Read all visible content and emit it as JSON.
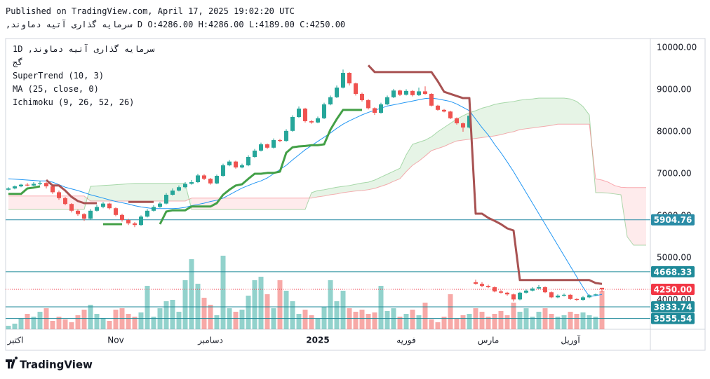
{
  "header": {
    "published": "Published on TradingView.com, April 17, 2025 19:02:20 UTC",
    "symbol": "سرمایه گذاری آتیه دماوند,",
    "interval": "D",
    "ohlc": [
      "O:4286.00",
      "H:4286.00",
      "L:4189.00",
      "C:4250.00"
    ]
  },
  "footer": {
    "brand": "TradingView"
  },
  "chart_data": {
    "type": "candlestick",
    "legend_interval": "1D",
    "legend_symbol": "سرمایه گذاری آتیه دماوند,",
    "legend_exchange": "گج",
    "up_color": "#26a69a",
    "down_color": "#ef5350",
    "grid": false,
    "ylim": [
      3300,
      10217
    ],
    "yticks": [
      {
        "value": 10000,
        "label": "10000.00"
      },
      {
        "value": 9000,
        "label": "9000.00"
      },
      {
        "value": 8000,
        "label": "8000.00"
      },
      {
        "value": 7000,
        "label": "7000.00"
      },
      {
        "value": 6000,
        "label": "6000.00"
      },
      {
        "value": 5000,
        "label": "5000.00"
      },
      {
        "value": 4000,
        "label": "4000.00"
      }
    ],
    "categories": [
      "اکتبر",
      null,
      null,
      null,
      null,
      null,
      null,
      null,
      null,
      null,
      null,
      null,
      null,
      null,
      null,
      null,
      null,
      "Nov",
      null,
      null,
      null,
      null,
      null,
      null,
      null,
      null,
      null,
      null,
      null,
      null,
      null,
      null,
      "دسامبر",
      null,
      null,
      null,
      null,
      null,
      null,
      null,
      null,
      null,
      null,
      null,
      null,
      null,
      null,
      null,
      null,
      "2025",
      null,
      null,
      null,
      null,
      null,
      null,
      null,
      null,
      null,
      null,
      null,
      null,
      null,
      "فوریه",
      null,
      null,
      null,
      null,
      null,
      null,
      null,
      null,
      null,
      null,
      null,
      null,
      "مارس",
      null,
      null,
      null,
      null,
      null,
      null,
      null,
      null,
      null,
      null,
      null,
      null,
      "آوریل",
      null,
      null,
      null,
      null,
      null,
      null,
      null,
      null,
      null,
      null,
      null,
      null
    ],
    "ohlc": [
      [
        6620,
        6680,
        6600,
        6650
      ],
      [
        6650,
        6720,
        6630,
        6700
      ],
      [
        6700,
        6760,
        6680,
        6740
      ],
      [
        6740,
        6780,
        6700,
        6720
      ],
      [
        6720,
        6800,
        6700,
        6760
      ],
      [
        6760,
        6830,
        6730,
        6780
      ],
      [
        6780,
        6800,
        6650,
        6700
      ],
      [
        6700,
        6720,
        6520,
        6560
      ],
      [
        6560,
        6600,
        6380,
        6420
      ],
      [
        6420,
        6450,
        6250,
        6280
      ],
      [
        6280,
        6300,
        6080,
        6120
      ],
      [
        6120,
        6150,
        6000,
        6040
      ],
      [
        6040,
        6060,
        5880,
        5930
      ],
      [
        5930,
        6160,
        5910,
        6120
      ],
      [
        6120,
        6260,
        6100,
        6210
      ],
      [
        6210,
        6330,
        6180,
        6290
      ],
      [
        6290,
        6310,
        6150,
        6180
      ],
      [
        6180,
        6200,
        5990,
        6020
      ],
      [
        6020,
        6050,
        5860,
        5900
      ],
      [
        5900,
        5930,
        5780,
        5820
      ],
      [
        5820,
        5850,
        5730,
        5780
      ],
      [
        5780,
        6010,
        5760,
        5980
      ],
      [
        5980,
        6160,
        5960,
        6120
      ],
      [
        6120,
        6250,
        6100,
        6210
      ],
      [
        6210,
        6330,
        6190,
        6290
      ],
      [
        6290,
        6540,
        6270,
        6500
      ],
      [
        6500,
        6650,
        6480,
        6600
      ],
      [
        6600,
        6720,
        6580,
        6680
      ],
      [
        6680,
        6800,
        6650,
        6760
      ],
      [
        6760,
        6850,
        6740,
        6800
      ],
      [
        6800,
        7000,
        6780,
        6960
      ],
      [
        6960,
        6990,
        6850,
        6880
      ],
      [
        6880,
        6900,
        6740,
        6770
      ],
      [
        6770,
        6980,
        6750,
        6950
      ],
      [
        6950,
        7240,
        6930,
        7200
      ],
      [
        7200,
        7330,
        7180,
        7290
      ],
      [
        7290,
        7310,
        7120,
        7150
      ],
      [
        7150,
        7240,
        7130,
        7200
      ],
      [
        7200,
        7440,
        7180,
        7400
      ],
      [
        7400,
        7590,
        7380,
        7550
      ],
      [
        7550,
        7740,
        7530,
        7700
      ],
      [
        7700,
        7720,
        7590,
        7620
      ],
      [
        7620,
        7840,
        7600,
        7800
      ],
      [
        7800,
        7830,
        7750,
        7780
      ],
      [
        7780,
        8060,
        7760,
        8020
      ],
      [
        8020,
        8390,
        8000,
        8350
      ],
      [
        8350,
        8600,
        8330,
        8550
      ],
      [
        8550,
        8570,
        8220,
        8250
      ],
      [
        8250,
        8280,
        8190,
        8220
      ],
      [
        8220,
        8360,
        8200,
        8320
      ],
      [
        8320,
        8690,
        8300,
        8650
      ],
      [
        8650,
        8860,
        8630,
        8820
      ],
      [
        8820,
        9100,
        8800,
        9050
      ],
      [
        9050,
        9480,
        9030,
        9400
      ],
      [
        9400,
        9420,
        9100,
        9150
      ],
      [
        9150,
        9170,
        8860,
        8900
      ],
      [
        8900,
        8930,
        8720,
        8750
      ],
      [
        8750,
        8780,
        8530,
        8560
      ],
      [
        8560,
        8580,
        8400,
        8450
      ],
      [
        8450,
        8690,
        8430,
        8650
      ],
      [
        8650,
        8860,
        8630,
        8820
      ],
      [
        8820,
        9020,
        8800,
        8980
      ],
      [
        8980,
        9000,
        8850,
        8880
      ],
      [
        8880,
        9010,
        8860,
        8970
      ],
      [
        8970,
        8990,
        8840,
        8870
      ],
      [
        8870,
        9050,
        8850,
        8960
      ],
      [
        8960,
        9080,
        8880,
        8900
      ],
      [
        8900,
        8920,
        8600,
        8620
      ],
      [
        8620,
        8640,
        8500,
        8520
      ],
      [
        8520,
        8540,
        8460,
        8480
      ],
      [
        8480,
        8500,
        8300,
        8320
      ],
      [
        8320,
        8340,
        8170,
        8200
      ],
      [
        8200,
        8220,
        8000,
        8100
      ],
      [
        8100,
        8420,
        8080,
        8380
      ],
      [
        4420,
        4480,
        4360,
        4380
      ],
      [
        4380,
        4420,
        4300,
        4330
      ],
      [
        4330,
        4360,
        4280,
        4300
      ],
      [
        4300,
        4320,
        4180,
        4200
      ],
      [
        4200,
        4230,
        4150,
        4170
      ],
      [
        4170,
        4190,
        4100,
        4130
      ],
      [
        4130,
        4150,
        3960,
        4010
      ],
      [
        4010,
        4190,
        3990,
        4170
      ],
      [
        4170,
        4250,
        4150,
        4220
      ],
      [
        4220,
        4300,
        4200,
        4270
      ],
      [
        4270,
        4350,
        4250,
        4300
      ],
      [
        4300,
        4320,
        4160,
        4180
      ],
      [
        4180,
        4200,
        4040,
        4060
      ],
      [
        4060,
        4130,
        4040,
        4100
      ],
      [
        4100,
        4150,
        4080,
        4120
      ],
      [
        4120,
        4140,
        4000,
        4020
      ],
      [
        4020,
        4040,
        3970,
        4000
      ],
      [
        4000,
        4090,
        3980,
        4060
      ],
      [
        4060,
        4130,
        4040,
        4110
      ],
      [
        4110,
        4150,
        4090,
        4130
      ],
      [
        4286,
        4286,
        4189,
        4250
      ],
      null,
      null,
      null,
      null,
      null,
      null,
      null
    ],
    "volume": [
      5,
      8,
      15,
      22,
      18,
      25,
      30,
      12,
      18,
      14,
      10,
      20,
      28,
      35,
      22,
      16,
      12,
      28,
      30,
      22,
      18,
      24,
      62,
      18,
      30,
      40,
      42,
      25,
      70,
      100,
      65,
      45,
      35,
      20,
      105,
      30,
      25,
      28,
      48,
      70,
      75,
      50,
      30,
      70,
      55,
      40,
      22,
      28,
      20,
      15,
      32,
      70,
      40,
      55,
      30,
      25,
      28,
      22,
      24,
      62,
      26,
      30,
      18,
      22,
      28,
      20,
      38,
      14,
      10,
      18,
      50,
      15,
      20,
      22,
      30,
      25,
      18,
      22,
      26,
      20,
      38,
      25,
      30,
      18,
      25,
      30,
      22,
      18,
      20,
      25,
      22,
      24,
      20,
      18,
      55,
      null,
      null,
      null,
      null,
      null,
      null,
      null
    ],
    "series": [
      {
        "name": "SuperTrend (10, 3)",
        "up_color": "#43a047",
        "down_color": "#a85252",
        "up": [
          6520,
          6520,
          6520,
          6650,
          6670,
          6700,
          null,
          null,
          null,
          null,
          null,
          null,
          null,
          null,
          null,
          5800,
          5800,
          5800,
          5800,
          null,
          null,
          null,
          null,
          null,
          5800,
          6100,
          6130,
          6130,
          6130,
          6220,
          6220,
          6220,
          6220,
          6300,
          6500,
          6620,
          6720,
          6750,
          6880,
          7000,
          7000,
          7020,
          7020,
          7050,
          7500,
          7630,
          7650,
          7660,
          7680,
          7680,
          7700,
          8050,
          8300,
          8520,
          8520,
          8520,
          8520,
          null,
          null,
          null,
          null,
          null,
          null,
          null,
          null,
          null,
          null,
          null,
          null,
          null,
          null,
          null,
          null,
          null,
          null,
          null,
          null,
          null,
          null,
          null,
          null,
          null,
          null,
          null,
          null,
          null,
          null,
          null,
          null,
          null,
          null,
          null,
          null,
          null,
          null,
          null,
          null,
          null,
          null,
          null,
          null,
          null
        ],
        "down": [
          null,
          null,
          null,
          null,
          null,
          null,
          6850,
          6720,
          6720,
          6600,
          6450,
          6350,
          6300,
          6300,
          6300,
          null,
          null,
          null,
          null,
          6330,
          6330,
          6330,
          6330,
          6330,
          null,
          null,
          null,
          null,
          null,
          null,
          null,
          null,
          null,
          null,
          null,
          null,
          null,
          null,
          null,
          null,
          null,
          null,
          null,
          null,
          null,
          null,
          null,
          null,
          null,
          null,
          null,
          null,
          null,
          null,
          null,
          null,
          null,
          9580,
          9420,
          9420,
          9420,
          9420,
          9420,
          9420,
          9420,
          9420,
          9420,
          9420,
          9200,
          8950,
          8900,
          8850,
          8800,
          8800,
          6050,
          6050,
          5950,
          5880,
          5800,
          5700,
          5650,
          4470,
          4470,
          4470,
          4470,
          4470,
          4470,
          4470,
          4470,
          4470,
          4470,
          4470,
          4470,
          4400,
          4380,
          null,
          null,
          null,
          null,
          null,
          null,
          null
        ]
      },
      {
        "name": "MA (25, close, 0)",
        "color": "#2196f3",
        "values": [
          6880,
          6870,
          6860,
          6850,
          6840,
          6830,
          6830,
          6800,
          6740,
          6680,
          6640,
          6600,
          6550,
          6500,
          6460,
          6420,
          6380,
          6340,
          6310,
          6280,
          6240,
          6210,
          6190,
          6170,
          6170,
          6170,
          6170,
          6180,
          6200,
          6240,
          6270,
          6300,
          6340,
          6370,
          6420,
          6500,
          6580,
          6660,
          6720,
          6780,
          6830,
          6900,
          7000,
          7100,
          7200,
          7330,
          7450,
          7570,
          7670,
          7770,
          7870,
          7970,
          8080,
          8180,
          8260,
          8330,
          8400,
          8460,
          8510,
          8560,
          8610,
          8640,
          8670,
          8700,
          8730,
          8760,
          8790,
          8800,
          8780,
          8750,
          8720,
          8660,
          8580,
          8500,
          8300,
          8100,
          7920,
          7700,
          7500,
          7280,
          7050,
          6800,
          6550,
          6300,
          6050,
          5800,
          5550,
          5300,
          5050,
          4800,
          4550,
          4300,
          4080,
          4100,
          4130,
          null,
          null,
          null,
          null,
          null,
          null,
          null
        ]
      },
      {
        "name": "Ichimoku (9, 26, 52, 26)",
        "up_color": "#4caf50",
        "down_color": "#f23645",
        "span_a": [
          6150,
          6150,
          6150,
          6150,
          6150,
          6150,
          6150,
          6150,
          6150,
          6150,
          6150,
          6150,
          6150,
          6700,
          6710,
          6720,
          6730,
          6740,
          6750,
          6760,
          6770,
          6770,
          6770,
          6770,
          6770,
          6770,
          6770,
          6770,
          6770,
          6150,
          6150,
          6150,
          6150,
          6150,
          6150,
          6150,
          6150,
          6150,
          6150,
          6150,
          6150,
          6150,
          6150,
          6150,
          6150,
          6150,
          6150,
          6150,
          6550,
          6600,
          6620,
          6650,
          6680,
          6700,
          6720,
          6750,
          6780,
          6800,
          6850,
          6920,
          6990,
          7060,
          7130,
          7450,
          7700,
          7750,
          7800,
          7880,
          8000,
          8100,
          8200,
          8300,
          8380,
          8450,
          8500,
          8560,
          8600,
          8650,
          8680,
          8700,
          8720,
          8750,
          8770,
          8780,
          8800,
          8800,
          8800,
          8800,
          8800,
          8780,
          8720,
          8600,
          8400,
          6550,
          6550,
          6540,
          6520,
          6500,
          5500,
          5300,
          5300,
          5300
        ],
        "span_b": [
          6470,
          6470,
          6470,
          6470,
          6470,
          6470,
          6470,
          6470,
          6470,
          6470,
          6470,
          6470,
          6470,
          6350,
          6350,
          6350,
          6350,
          6350,
          6350,
          6350,
          6350,
          6350,
          6350,
          6350,
          6350,
          6350,
          6350,
          6350,
          6350,
          6420,
          6420,
          6420,
          6420,
          6420,
          6420,
          6420,
          6420,
          6420,
          6420,
          6420,
          6420,
          6420,
          6420,
          6420,
          6420,
          6420,
          6420,
          6420,
          6420,
          6450,
          6470,
          6500,
          6520,
          6550,
          6570,
          6590,
          6600,
          6620,
          6650,
          6700,
          6750,
          6820,
          6880,
          7050,
          7200,
          7300,
          7420,
          7550,
          7600,
          7650,
          7720,
          7780,
          7800,
          7820,
          7840,
          7860,
          7880,
          7900,
          7930,
          7970,
          8000,
          8050,
          8070,
          8090,
          8110,
          8130,
          8150,
          8180,
          8180,
          8180,
          8180,
          8180,
          8180,
          6880,
          6850,
          6800,
          6720,
          6680,
          6670,
          6670,
          6670,
          6670
        ]
      }
    ],
    "price_lines": [
      {
        "value": 5904.76,
        "label": "5904.76",
        "color": "#2a8ca6"
      },
      {
        "value": 4668.33,
        "label": "4668.33",
        "color": "#1f8a99"
      },
      {
        "value": 3833.74,
        "label": "3833.74",
        "color": "#1f8a99"
      },
      {
        "value": 3555.54,
        "label": "3555.54",
        "color": "#1f8a99"
      }
    ],
    "last_price": {
      "value": 4250,
      "label": "4250.00",
      "color": "#f23645"
    }
  }
}
